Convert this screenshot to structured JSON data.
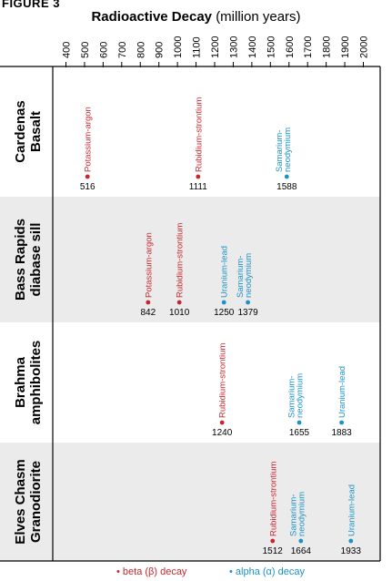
{
  "figure_label": "FIGURE 3",
  "title_bold": "Radioactive Decay",
  "title_unit": "(million years)",
  "colors": {
    "beta": "#c8262f",
    "alpha": "#1b93c7",
    "band_shade": "#ebebeb",
    "frame": "#000000"
  },
  "legend": {
    "beta_label": "• beta (β) decay",
    "alpha_label": "• alpha (α) decay"
  },
  "chart_data": {
    "type": "scatter",
    "title": "Radioactive Decay (million years)",
    "axis_ticks": [
      400,
      500,
      600,
      700,
      800,
      900,
      1000,
      1100,
      1200,
      1300,
      1400,
      1500,
      1600,
      1700,
      1800,
      1900,
      2000
    ],
    "axis_range": [
      400,
      2000
    ],
    "axis_position": "top",
    "groups": [
      {
        "name": "Cardenas Basalt",
        "lines": [
          "Cardenas",
          "Basalt"
        ],
        "shaded": false,
        "points": [
          {
            "method": "Potassium-argon",
            "value": 516,
            "decay": "beta"
          },
          {
            "method": "Rubidium-strontium",
            "value": 1111,
            "decay": "beta"
          },
          {
            "method": "Samarium-neodymium",
            "value": 1588,
            "decay": "alpha"
          }
        ]
      },
      {
        "name": "Bass Rapids diabase sill",
        "lines": [
          "Bass Rapids",
          "diabase sill"
        ],
        "shaded": true,
        "points": [
          {
            "method": "Potassium-argon",
            "value": 842,
            "decay": "beta"
          },
          {
            "method": "Rubidium-strontium",
            "value": 1010,
            "decay": "beta"
          },
          {
            "method": "Uranium-lead",
            "value": 1250,
            "decay": "alpha"
          },
          {
            "method": "Samarium-neodymium",
            "value": 1379,
            "decay": "alpha"
          }
        ]
      },
      {
        "name": "Brahma amphibolites",
        "lines": [
          "Brahma",
          "amphibolites"
        ],
        "shaded": false,
        "points": [
          {
            "method": "Rubidium-strontium",
            "value": 1240,
            "decay": "beta"
          },
          {
            "method": "Samarium-neodymium",
            "value": 1655,
            "decay": "alpha"
          },
          {
            "method": "Uranium-lead",
            "value": 1883,
            "decay": "alpha"
          }
        ]
      },
      {
        "name": "Elves Chasm Granodiorite",
        "lines": [
          "Elves Chasm",
          "Granodiorite"
        ],
        "shaded": true,
        "points": [
          {
            "method": "Rubidium-strontium",
            "value": 1512,
            "decay": "beta"
          },
          {
            "method": "Samarium-neodymium",
            "value": 1664,
            "decay": "alpha"
          },
          {
            "method": "Uranium-lead",
            "value": 1933,
            "decay": "alpha"
          }
        ]
      }
    ]
  }
}
